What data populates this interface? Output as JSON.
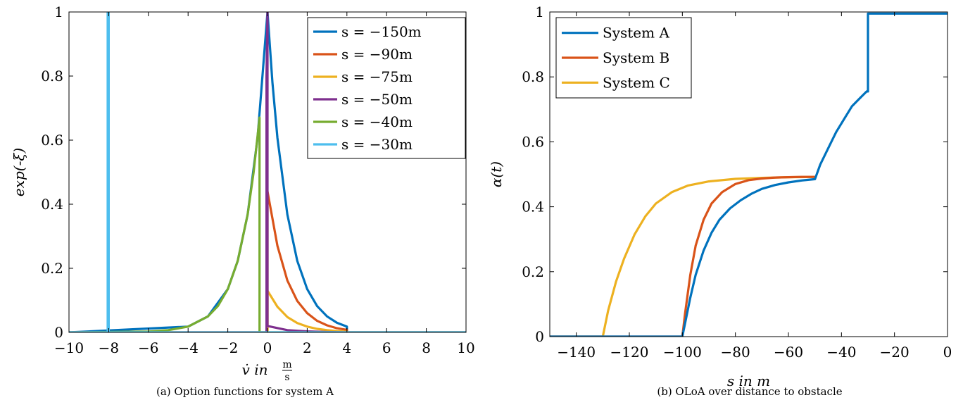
{
  "chart_data": [
    {
      "type": "line",
      "caption": "(a) Option functions for system A",
      "xlabel": "v̇ in m/s",
      "xlabel_main": "v̇ in",
      "xlabel_num": "m",
      "xlabel_den": "s",
      "ylabel": "exp(-ξ)",
      "xlim": [
        -10,
        10
      ],
      "ylim": [
        0,
        1
      ],
      "xticks": [
        -10,
        -8,
        -6,
        -4,
        -2,
        0,
        2,
        4,
        6,
        8,
        10
      ],
      "yticks": [
        0,
        0.2,
        0.4,
        0.6,
        0.8,
        1
      ],
      "xtick_labels": [
        "−10",
        "−8",
        "−6",
        "−4",
        "−2",
        "0",
        "2",
        "4",
        "6",
        "8",
        "10"
      ],
      "ytick_labels": [
        "0",
        "0.2",
        "0.4",
        "0.6",
        "0.8",
        "1"
      ],
      "legend_position": "top-right",
      "grid": false,
      "series": [
        {
          "name": "s = −150m",
          "color": "#0072BD",
          "x": [
            -10,
            -4,
            -3,
            -2,
            -1.5,
            -1,
            -0.5,
            0,
            0.25,
            0.5,
            1,
            1.5,
            2,
            2.5,
            3,
            3.5,
            4,
            4,
            10
          ],
          "y": [
            0,
            0.018,
            0.05,
            0.135,
            0.223,
            0.368,
            0.607,
            1.0,
            0.78,
            0.607,
            0.368,
            0.223,
            0.135,
            0.082,
            0.05,
            0.03,
            0.018,
            0,
            0
          ]
        },
        {
          "name": "s = −90m",
          "color": "#D95319",
          "x": [
            -10,
            0,
            0,
            0.5,
            1,
            1.5,
            2,
            2.5,
            3,
            3.5,
            4,
            4,
            10
          ],
          "y": [
            0,
            0,
            0.44,
            0.27,
            0.162,
            0.098,
            0.06,
            0.036,
            0.022,
            0.013,
            0.008,
            0,
            0
          ]
        },
        {
          "name": "s = −75m",
          "color": "#EDB120",
          "x": [
            -10,
            0,
            0,
            0.5,
            1,
            1.5,
            2,
            2.5,
            3,
            3.5,
            4,
            4,
            10
          ],
          "y": [
            0,
            0,
            0.13,
            0.08,
            0.048,
            0.029,
            0.018,
            0.011,
            0.007,
            0.004,
            0.002,
            0,
            0
          ]
        },
        {
          "name": "s = −50m",
          "color": "#7E2F8E",
          "x": [
            -10,
            -0.05,
            -0.05,
            0,
            0,
            1,
            2,
            3,
            4,
            10
          ],
          "y": [
            0,
            0,
            0.8,
            1.0,
            0.02,
            0.007,
            0.003,
            0.001,
            0,
            0
          ]
        },
        {
          "name": "s = −40m",
          "color": "#77AC30",
          "x": [
            -10,
            -6,
            -5,
            -4,
            -3,
            -2.5,
            -2,
            -1.5,
            -1,
            -0.7,
            -0.4,
            -0.4,
            10
          ],
          "y": [
            0,
            0.0025,
            0.007,
            0.018,
            0.05,
            0.082,
            0.135,
            0.223,
            0.368,
            0.5,
            0.67,
            0,
            0
          ]
        },
        {
          "name": "s = −30m",
          "color": "#4DBEEE",
          "x": [
            -10,
            -8.05,
            -8.05,
            -8.0,
            -8.0,
            10
          ],
          "y": [
            0,
            0,
            1,
            1,
            0,
            0
          ]
        }
      ]
    },
    {
      "type": "line",
      "caption": "(b) OLoA over distance to obstacle",
      "xlabel": "s in m",
      "ylabel": "α(t)",
      "xlim": [
        -150,
        0
      ],
      "ylim": [
        0,
        1
      ],
      "xticks": [
        -140,
        -120,
        -100,
        -80,
        -60,
        -40,
        -20,
        0
      ],
      "yticks": [
        0,
        0.2,
        0.4,
        0.6,
        0.8,
        1
      ],
      "xtick_labels": [
        "−140",
        "−120",
        "−100",
        "−80",
        "−60",
        "−40",
        "−20",
        "0"
      ],
      "ytick_labels": [
        "0",
        "0.2",
        "0.4",
        "0.6",
        "0.8",
        "1"
      ],
      "legend_position": "top-left",
      "grid": false,
      "series": [
        {
          "name": "System C",
          "color": "#EDB120",
          "x": [
            -150,
            -130,
            -128,
            -125,
            -122,
            -118,
            -114,
            -110,
            -104,
            -98,
            -90,
            -80,
            -70,
            -60,
            -50
          ],
          "y": [
            0,
            0,
            0.08,
            0.17,
            0.24,
            0.315,
            0.37,
            0.41,
            0.445,
            0.465,
            0.478,
            0.486,
            0.489,
            0.491,
            0.492
          ]
        },
        {
          "name": "System B",
          "color": "#D95319",
          "x": [
            -150,
            -100,
            -99,
            -97,
            -95,
            -92,
            -89,
            -85,
            -80,
            -75,
            -70,
            -65,
            -60,
            -55,
            -50
          ],
          "y": [
            0,
            0,
            0.07,
            0.19,
            0.28,
            0.36,
            0.41,
            0.445,
            0.47,
            0.482,
            0.487,
            0.49,
            0.491,
            0.492,
            0.492
          ]
        },
        {
          "name": "System A",
          "color": "#0072BD",
          "x": [
            -150,
            -100,
            -99,
            -97,
            -95,
            -92,
            -89,
            -86,
            -82,
            -78,
            -74,
            -70,
            -65,
            -60,
            -55,
            -50,
            -48,
            -45,
            -42,
            -39,
            -36,
            -33,
            -30.5,
            -30,
            -30,
            0
          ],
          "y": [
            0,
            0,
            0.04,
            0.12,
            0.19,
            0.265,
            0.32,
            0.36,
            0.395,
            0.42,
            0.44,
            0.455,
            0.467,
            0.475,
            0.481,
            0.485,
            0.53,
            0.58,
            0.63,
            0.67,
            0.71,
            0.735,
            0.755,
            0.755,
            0.995,
            0.995
          ]
        }
      ]
    }
  ]
}
